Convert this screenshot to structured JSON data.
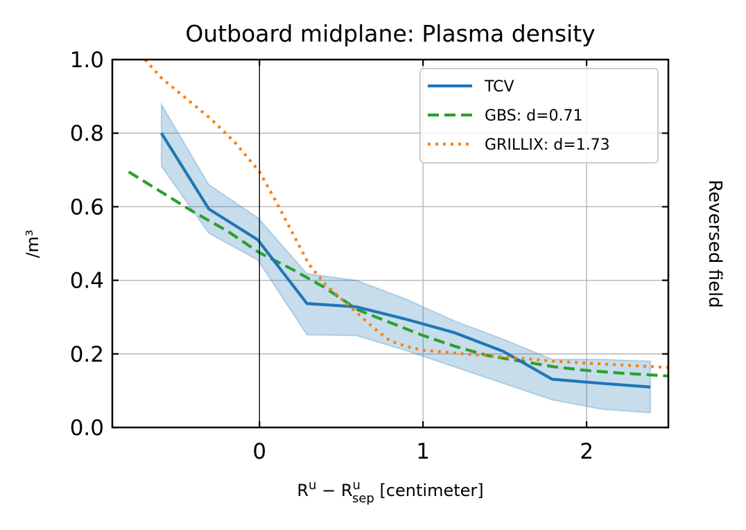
{
  "chart_data": {
    "type": "line",
    "title": "Outboard midplane: Plasma density",
    "xlabel": {
      "base": "R",
      "sup1": "u",
      "minus": " − R",
      "sup2": "u",
      "sub2": "sep",
      "unit": " [centimeter]"
    },
    "ylabel": "/m³",
    "side_label": "Reversed field",
    "xlim": [
      -0.9,
      2.5
    ],
    "ylim": [
      0,
      1.0
    ],
    "xticks": [
      0,
      1,
      2
    ],
    "xtick_labels": [
      "0",
      "1",
      "2"
    ],
    "yticks": [
      0.0,
      0.2,
      0.4,
      0.6,
      0.8,
      1.0
    ],
    "ytick_labels": [
      "0.0",
      "0.2",
      "0.4",
      "0.6",
      "0.8",
      "1.0"
    ],
    "grid": true,
    "vline_x": 0,
    "legend_position": "upper-right",
    "series": [
      {
        "name": "TCV",
        "style": "solid",
        "color": "#1f77b4",
        "x": [
          -0.6,
          -0.31,
          -0.01,
          0.29,
          0.59,
          0.89,
          1.19,
          1.49,
          1.79,
          2.09,
          2.39
        ],
        "y": [
          0.8,
          0.594,
          0.51,
          0.337,
          0.328,
          0.295,
          0.258,
          0.207,
          0.131,
          0.12,
          0.11
        ],
        "band_lower": [
          0.71,
          0.528,
          0.455,
          0.252,
          0.25,
          0.21,
          0.165,
          0.12,
          0.075,
          0.05,
          0.04
        ],
        "band_upper": [
          0.878,
          0.66,
          0.57,
          0.418,
          0.4,
          0.35,
          0.29,
          0.24,
          0.185,
          0.185,
          0.18
        ]
      },
      {
        "name": "GBS: d=0.71",
        "style": "dashed",
        "color": "#2ca02c",
        "x": [
          -0.8,
          -0.6,
          -0.4,
          -0.2,
          0.0,
          0.2,
          0.4,
          0.6,
          0.8,
          1.0,
          1.2,
          1.4,
          1.6,
          1.8,
          2.0,
          2.2,
          2.5
        ],
        "y": [
          0.695,
          0.64,
          0.585,
          0.535,
          0.475,
          0.43,
          0.38,
          0.32,
          0.285,
          0.25,
          0.22,
          0.195,
          0.18,
          0.165,
          0.155,
          0.148,
          0.14
        ]
      },
      {
        "name": "GRILLIX: d=1.73",
        "style": "dotted",
        "color": "#ff7f0e",
        "x": [
          -0.7,
          -0.6,
          -0.45,
          -0.3,
          -0.15,
          0.0,
          0.1,
          0.2,
          0.3,
          0.4,
          0.5,
          0.6,
          0.7,
          0.8,
          0.9,
          1.0,
          1.2,
          1.4,
          1.6,
          1.8,
          2.0,
          2.2,
          2.5
        ],
        "y": [
          1.0,
          0.95,
          0.895,
          0.84,
          0.775,
          0.695,
          0.615,
          0.53,
          0.445,
          0.39,
          0.35,
          0.31,
          0.27,
          0.235,
          0.22,
          0.21,
          0.202,
          0.195,
          0.188,
          0.18,
          0.175,
          0.17,
          0.163
        ]
      }
    ]
  }
}
